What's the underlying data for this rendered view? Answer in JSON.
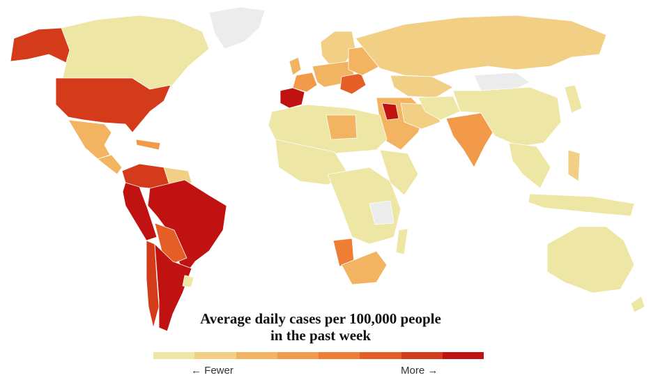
{
  "legend": {
    "title_line1": "Average daily cases per 100,000 people",
    "title_line2": "in the past week",
    "fewer_label": "← Fewer",
    "more_label": "More →",
    "scale_colors": [
      "#ede6a4",
      "#f1cf84",
      "#f2b461",
      "#f29a49",
      "#ef7e34",
      "#e45e26",
      "#d43b1a",
      "#c11212"
    ]
  },
  "map_colors": {
    "no_data": "#ececec",
    "level_1": "#ede6a4",
    "level_2": "#f1cf84",
    "level_3": "#f2b461",
    "level_4": "#f29a49",
    "level_5": "#ef7e34",
    "level_6": "#e45e26",
    "level_7": "#d43b1a",
    "level_8": "#c11212"
  }
}
